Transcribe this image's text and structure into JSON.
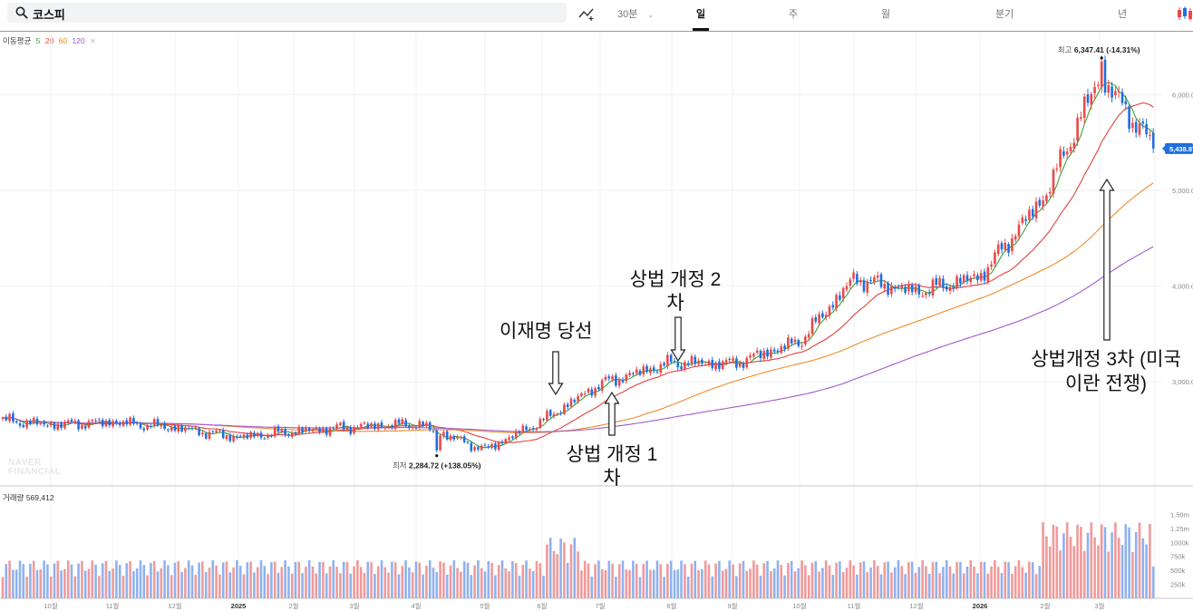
{
  "search": {
    "value": "코스피"
  },
  "toolbar": {
    "tabs": [
      {
        "label": "30분",
        "active": false,
        "dropdown": true
      },
      {
        "label": "일",
        "active": true
      },
      {
        "label": "주",
        "active": false
      },
      {
        "label": "월",
        "active": false
      },
      {
        "label": "분기",
        "active": false
      },
      {
        "label": "년",
        "active": false
      }
    ]
  },
  "moving_average": {
    "label": "이동평균",
    "periods": [
      {
        "value": "5",
        "color": "#3aa43a"
      },
      {
        "value": "20",
        "color": "#e0443b"
      },
      {
        "value": "60",
        "color": "#f08b2a"
      },
      {
        "value": "120",
        "color": "#a05ad0"
      }
    ]
  },
  "volume_label": "거래량 569,412",
  "watermark": [
    "NAVER",
    "FINANCIAL"
  ],
  "colors": {
    "up": "#e84a4a",
    "down": "#1f6fe0",
    "current_badge": "#1f6fe0"
  },
  "annotations": [
    {
      "text": "이재명 당선",
      "arrow": "down"
    },
    {
      "text": "상법 개정 1차",
      "arrow": "up"
    },
    {
      "text": "상법 개정 2차",
      "arrow": "down"
    },
    {
      "text": "상법개정 3차 (미국 이란 전쟁)",
      "arrow": "up"
    }
  ],
  "chart_data": {
    "type": "candlestick",
    "y_axis_labels": [
      "6,000.00",
      "5,000.00",
      "4,000.00",
      "3,000.00"
    ],
    "y_axis_values": [
      6000,
      5000,
      4000,
      3000
    ],
    "ylim": [
      1950,
      6650
    ],
    "current_price": {
      "value": 5438.87,
      "label": "5,438.87"
    },
    "high_marker": {
      "prefix": "최고",
      "value_label": "6,347.41",
      "change": "(-14.31%)",
      "value": 6347.41
    },
    "low_marker": {
      "prefix": "최저",
      "value_label": "2,284.72",
      "change": "(+138.05%)",
      "value": 2284.72
    },
    "x_axis_labels": [
      "10월",
      "11월",
      "12월",
      "2025",
      "2월",
      "3월",
      "4월",
      "5월",
      "6월",
      "7월",
      "8월",
      "9월",
      "10월",
      "11월",
      "12월",
      "2026",
      "2월",
      "3월"
    ],
    "price_anchors": [
      {
        "month": "2024-09",
        "close": 2550
      },
      {
        "month": "2024-10",
        "close": 2580
      },
      {
        "month": "2024-11",
        "close": 2520
      },
      {
        "month": "2024-12",
        "close": 2420
      },
      {
        "month": "2025-01",
        "close": 2480
      },
      {
        "month": "2025-02",
        "close": 2530
      },
      {
        "month": "2025-03",
        "close": 2560
      },
      {
        "month": "2025-04",
        "close": 2290
      },
      {
        "month": "2025-05",
        "close": 2590
      },
      {
        "month": "2025-06",
        "close": 2980
      },
      {
        "month": "2025-07",
        "close": 3200
      },
      {
        "month": "2025-08",
        "close": 3190
      },
      {
        "month": "2025-09",
        "close": 3420
      },
      {
        "month": "2025-10",
        "close": 4080
      },
      {
        "month": "2025-11",
        "close": 3940
      },
      {
        "month": "2025-12",
        "close": 4100
      },
      {
        "month": "2026-01",
        "close": 4950
      },
      {
        "month": "2026-02",
        "close": 6200
      },
      {
        "month": "2026-03",
        "close": 5439
      }
    ],
    "volume_axis_labels": [
      "1.50m",
      "1.25m",
      "1000k",
      "750k",
      "500k",
      "250k"
    ],
    "volume_axis_values": [
      1500000,
      1250000,
      1000000,
      750000,
      500000,
      250000
    ],
    "volume_last": 569412,
    "moving_average_periods": [
      5,
      20,
      60,
      120
    ],
    "grid": true
  }
}
